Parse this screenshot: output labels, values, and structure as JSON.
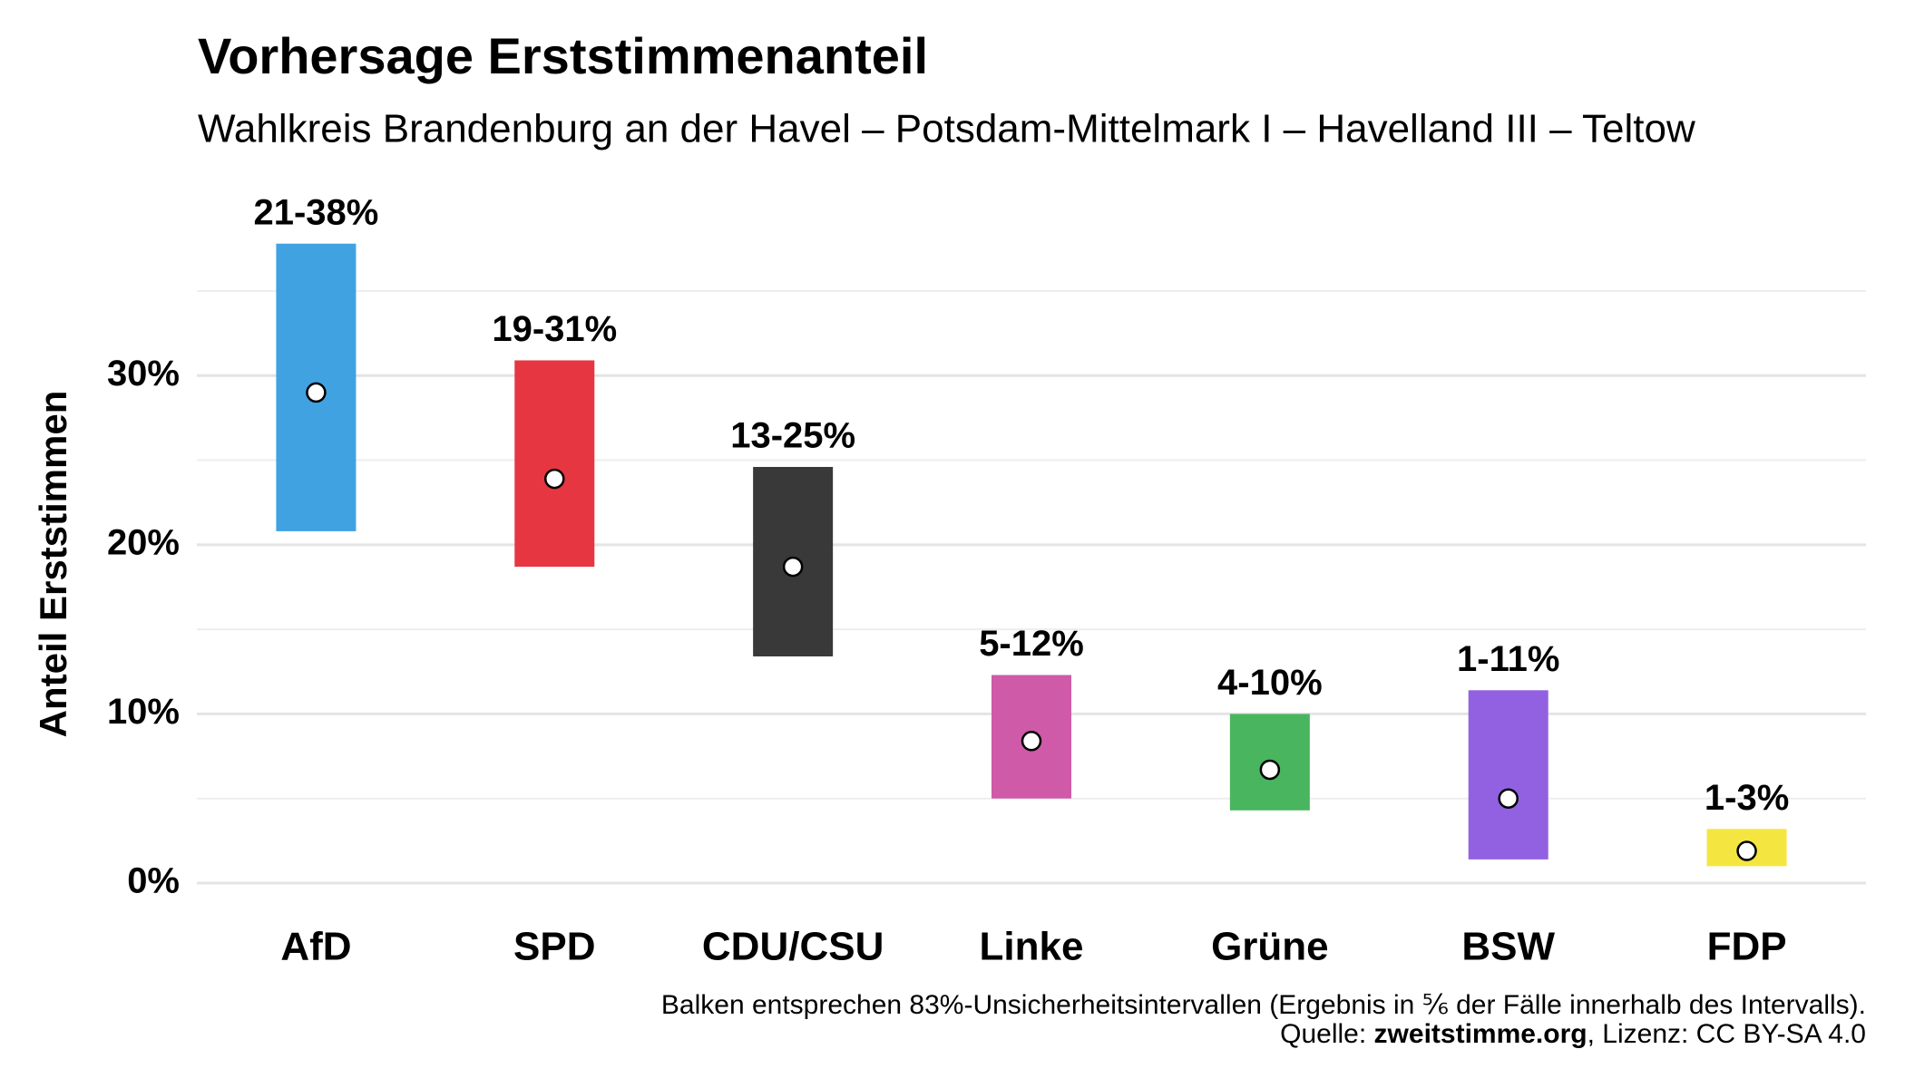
{
  "chart_data": {
    "type": "range-bar",
    "title": "Vorhersage Erststimmenanteil",
    "subtitle": "Wahlkreis Brandenburg an der Havel – Potsdam-Mittelmark I – Havelland III – Teltow",
    "y_label": "Anteil Erststimmen",
    "categories": [
      "AfD",
      "SPD",
      "CDU/CSU",
      "Linke",
      "Grüne",
      "BSW",
      "FDP"
    ],
    "colors": [
      "#3a9fe0",
      "#e5303c",
      "#333333",
      "#cc55a5",
      "#44b35a",
      "#8e5ce0",
      "#f5e43a"
    ],
    "lows": [
      20.8,
      18.7,
      13.4,
      5.0,
      4.3,
      1.4,
      1.0
    ],
    "highs": [
      37.8,
      30.9,
      24.6,
      12.3,
      10.0,
      11.4,
      3.2
    ],
    "estimates": [
      29.0,
      23.9,
      18.7,
      8.4,
      6.7,
      5.0,
      1.9
    ],
    "value_labels": [
      "21-38%",
      "19-31%",
      "13-25%",
      "5-12%",
      "4-10%",
      "1-11%",
      "1-3%"
    ],
    "ylim": [
      0,
      38
    ],
    "yticks": [
      {
        "value": 0,
        "label": "0%"
      },
      {
        "value": 10,
        "label": "10%"
      },
      {
        "value": 20,
        "label": "20%"
      },
      {
        "value": 30,
        "label": "30%"
      }
    ],
    "minor_yticks": [
      5,
      15,
      25,
      35
    ],
    "grid": true,
    "note": "Balken entsprechen 83%-Unsicherheitsintervallen (Ergebnis in ⅚ der Fälle innerhalb des Intervalls).",
    "source_label": "Quelle:",
    "source_name": "zweitstimme.org",
    "license": ", Lizenz: CC BY-SA 4.0"
  }
}
